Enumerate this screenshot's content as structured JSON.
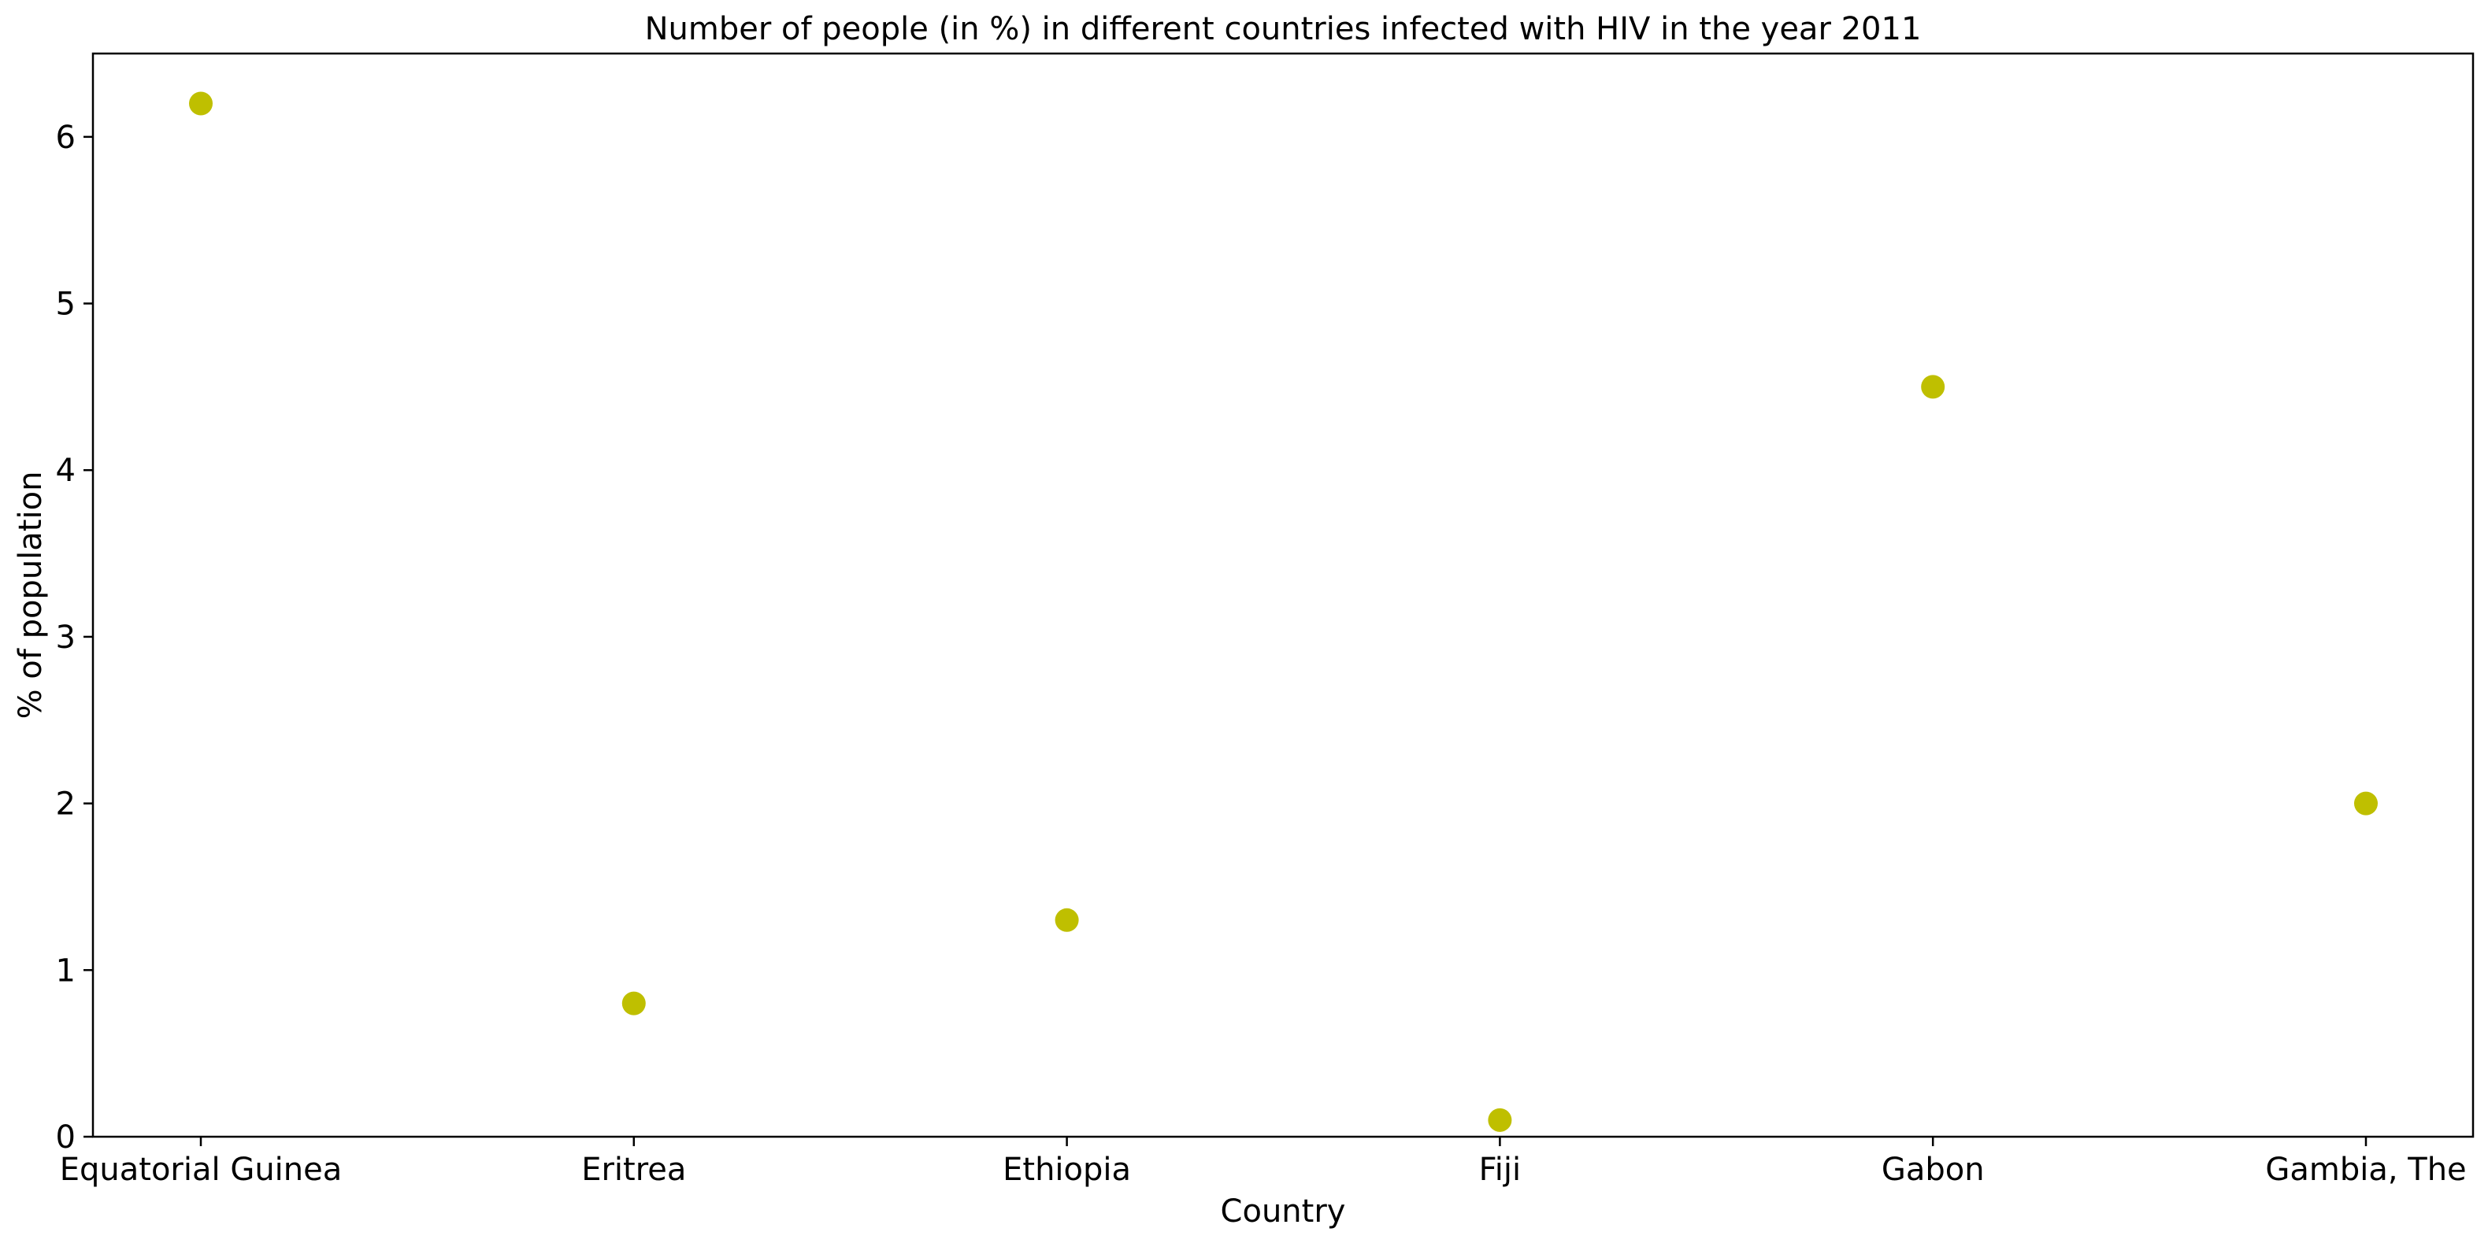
{
  "chart_data": {
    "type": "scatter",
    "title": "Number of people (in %) in different countries infected with HIV in the year 2011",
    "xlabel": "Country",
    "ylabel": "% of population",
    "categories": [
      "Equatorial Guinea",
      "Eritrea",
      "Ethiopia",
      "Fiji",
      "Gabon",
      "Gambia, The"
    ],
    "values": [
      6.2,
      0.8,
      1.3,
      0.1,
      4.5,
      2.0
    ],
    "ylim": [
      0,
      6.5
    ],
    "yticks": [
      0,
      1,
      2,
      3,
      4,
      5,
      6
    ],
    "grid": false,
    "legend": "none",
    "marker_color": "#bfbf00"
  }
}
